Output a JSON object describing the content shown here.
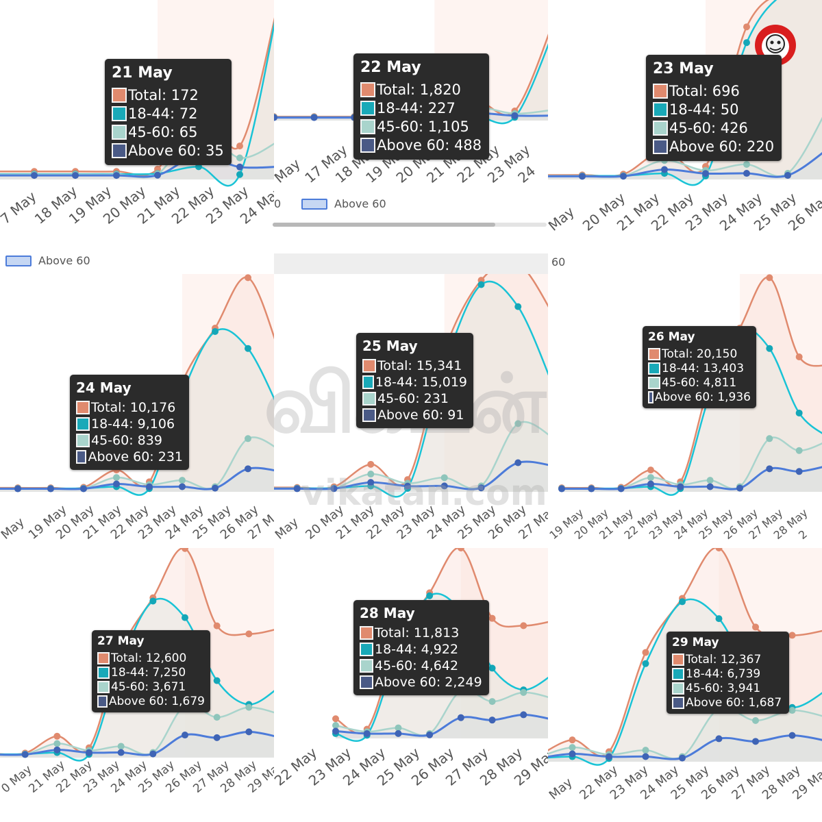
{
  "colors": {
    "total": "#e08a6e",
    "a1844": "#19c3d6",
    "a4560": "#a9d4cc",
    "above60": "#4c7bd9",
    "above60_fill": "#c6d7f3",
    "tip_bg": "#2b2b2b"
  },
  "chart_data": [
    {
      "type": "line",
      "x": [
        "17 May",
        "18 May",
        "19 May",
        "20 May",
        "21 May",
        "22 May",
        "23 May",
        "24 May"
      ],
      "series": [
        {
          "name": "Total",
          "values": [
            null,
            null,
            null,
            null,
            172,
            1820,
            696,
            10176
          ]
        },
        {
          "name": "18-44",
          "values": [
            null,
            null,
            null,
            null,
            72,
            227,
            50,
            9106
          ]
        },
        {
          "name": "45-60",
          "values": [
            null,
            null,
            null,
            null,
            65,
            1105,
            426,
            839
          ]
        },
        {
          "name": "Above 60",
          "values": [
            null,
            null,
            null,
            null,
            35,
            488,
            220,
            231
          ]
        }
      ],
      "tooltip": {
        "title": "21 May",
        "rows": [
          "Total: 172",
          "18-44: 72",
          "45-60: 65",
          "Above 60: 35"
        ]
      }
    },
    {
      "type": "line",
      "x": [
        "17 May",
        "18 May",
        "19 May",
        "20 May",
        "21 May",
        "22 May",
        "23 May",
        "24 May"
      ],
      "series": [
        {
          "name": "Total",
          "values": [
            null,
            null,
            null,
            null,
            172,
            1820,
            696,
            10176
          ]
        },
        {
          "name": "18-44",
          "values": [
            null,
            null,
            null,
            null,
            72,
            227,
            50,
            9106
          ]
        },
        {
          "name": "45-60",
          "values": [
            null,
            null,
            null,
            null,
            65,
            1105,
            426,
            839
          ]
        },
        {
          "name": "Above 60",
          "values": [
            null,
            null,
            null,
            null,
            35,
            488,
            220,
            231
          ]
        }
      ],
      "tooltip": {
        "title": "22 May",
        "rows": [
          "Total: 1,820",
          "18-44: 227",
          "45-60: 1,105",
          "Above 60: 488"
        ]
      }
    },
    {
      "type": "line",
      "x": [
        "19 May",
        "20 May",
        "21 May",
        "22 May",
        "23 May",
        "24 May",
        "25 May",
        "26 May"
      ],
      "series": [
        {
          "name": "Total",
          "values": [
            null,
            null,
            172,
            1820,
            696,
            10176,
            15341,
            20150
          ]
        },
        {
          "name": "18-44",
          "values": [
            null,
            null,
            72,
            227,
            50,
            9106,
            15019,
            13403
          ]
        },
        {
          "name": "45-60",
          "values": [
            null,
            null,
            65,
            1105,
            426,
            839,
            231,
            4811
          ]
        },
        {
          "name": "Above 60",
          "values": [
            null,
            null,
            35,
            488,
            220,
            231,
            91,
            1936
          ]
        }
      ],
      "tooltip": {
        "title": "23 May",
        "rows": [
          "Total: 696",
          "18-44: 50",
          "45-60: 426",
          "Above 60: 220"
        ]
      }
    },
    {
      "type": "line",
      "x": [
        "18 May",
        "19 May",
        "20 May",
        "21 May",
        "22 May",
        "23 May",
        "24 May",
        "25 May",
        "26 May",
        "27 May"
      ],
      "series": [
        {
          "name": "Total",
          "values": [
            null,
            null,
            null,
            172,
            1820,
            696,
            10176,
            15341,
            20150,
            12600
          ]
        },
        {
          "name": "18-44",
          "values": [
            null,
            null,
            null,
            72,
            227,
            50,
            9106,
            15019,
            13403,
            7250
          ]
        },
        {
          "name": "45-60",
          "values": [
            null,
            null,
            null,
            65,
            1105,
            426,
            839,
            231,
            4811,
            3671
          ]
        },
        {
          "name": "Above 60",
          "values": [
            null,
            null,
            null,
            35,
            488,
            220,
            231,
            91,
            1936,
            1679
          ]
        }
      ],
      "tooltip": {
        "title": "24 May",
        "rows": [
          "Total: 10,176",
          "18-44: 9,106",
          "45-60: 839",
          "Above 60: 231"
        ]
      }
    },
    {
      "type": "line",
      "x": [
        "19 May",
        "20 May",
        "21 May",
        "22 May",
        "23 May",
        "24 May",
        "25 May",
        "26 May",
        "27 May"
      ],
      "series": [
        {
          "name": "Total",
          "values": [
            null,
            null,
            172,
            1820,
            696,
            10176,
            15341,
            20150,
            12600
          ]
        },
        {
          "name": "18-44",
          "values": [
            null,
            null,
            72,
            227,
            50,
            9106,
            15019,
            13403,
            7250
          ]
        },
        {
          "name": "45-60",
          "values": [
            null,
            null,
            65,
            1105,
            426,
            839,
            231,
            4811,
            3671
          ]
        },
        {
          "name": "Above 60",
          "values": [
            null,
            null,
            35,
            488,
            220,
            231,
            91,
            1936,
            1679
          ]
        }
      ],
      "tooltip": {
        "title": "25 May",
        "rows": [
          "Total: 15,341",
          "18-44: 15,019",
          "45-60: 231",
          "Above 60: 91"
        ]
      }
    },
    {
      "type": "line",
      "x": [
        "19 May",
        "20 May",
        "21 May",
        "22 May",
        "23 May",
        "24 May",
        "25 May",
        "26 May",
        "27 May",
        "28 May"
      ],
      "series": [
        {
          "name": "Total",
          "values": [
            null,
            null,
            172,
            1820,
            696,
            10176,
            15341,
            20150,
            12600,
            11813
          ]
        },
        {
          "name": "18-44",
          "values": [
            null,
            null,
            72,
            227,
            50,
            9106,
            15019,
            13403,
            7250,
            4922
          ]
        },
        {
          "name": "45-60",
          "values": [
            null,
            null,
            65,
            1105,
            426,
            839,
            231,
            4811,
            3671,
            4642
          ]
        },
        {
          "name": "Above 60",
          "values": [
            null,
            null,
            35,
            488,
            220,
            231,
            91,
            1936,
            1679,
            2249
          ]
        }
      ],
      "tooltip": {
        "title": "26 May",
        "rows": [
          "Total: 20,150",
          "18-44: 13,403",
          "45-60: 4,811",
          "Above 60: 1,936"
        ]
      }
    },
    {
      "type": "line",
      "x": [
        "20 May",
        "21 May",
        "22 May",
        "23 May",
        "24 May",
        "25 May",
        "26 May",
        "27 May",
        "28 May",
        "29 May"
      ],
      "series": [
        {
          "name": "Total",
          "values": [
            null,
            172,
            1820,
            696,
            10176,
            15341,
            20150,
            12600,
            11813,
            12367
          ]
        },
        {
          "name": "18-44",
          "values": [
            null,
            72,
            227,
            50,
            9106,
            15019,
            13403,
            7250,
            4922,
            6739
          ]
        },
        {
          "name": "45-60",
          "values": [
            null,
            65,
            1105,
            426,
            839,
            231,
            4811,
            3671,
            4642,
            3941
          ]
        },
        {
          "name": "Above 60",
          "values": [
            null,
            35,
            488,
            220,
            231,
            91,
            1936,
            1679,
            2249,
            1687
          ]
        }
      ],
      "tooltip": {
        "title": "27 May",
        "rows": [
          "Total: 12,600",
          "18-44: 7,250",
          "45-60: 3,671",
          "Above 60: 1,679"
        ]
      }
    },
    {
      "type": "line",
      "x": [
        "22 May",
        "23 May",
        "24 May",
        "25 May",
        "26 May",
        "27 May",
        "28 May",
        "29 May"
      ],
      "series": [
        {
          "name": "Total",
          "values": [
            1820,
            696,
            10176,
            15341,
            20150,
            12600,
            11813,
            12367
          ]
        },
        {
          "name": "18-44",
          "values": [
            227,
            50,
            9106,
            15019,
            13403,
            7250,
            4922,
            6739
          ]
        },
        {
          "name": "45-60",
          "values": [
            1105,
            426,
            839,
            231,
            4811,
            3671,
            4642,
            3941
          ]
        },
        {
          "name": "Above 60",
          "values": [
            488,
            220,
            231,
            91,
            1936,
            1679,
            2249,
            1687
          ]
        }
      ],
      "tooltip": {
        "title": "28 May",
        "rows": [
          "Total: 11,813",
          "18-44: 4,922",
          "45-60: 4,642",
          "Above 60: 2,249"
        ]
      }
    },
    {
      "type": "line",
      "x": [
        "May",
        "22 May",
        "23 May",
        "24 May",
        "25 May",
        "26 May",
        "27 May",
        "28 May",
        "29 May"
      ],
      "series": [
        {
          "name": "Total",
          "values": [
            null,
            1820,
            696,
            10176,
            15341,
            20150,
            12600,
            11813,
            12367
          ]
        },
        {
          "name": "18-44",
          "values": [
            null,
            227,
            50,
            9106,
            15019,
            13403,
            7250,
            4922,
            6739
          ]
        },
        {
          "name": "45-60",
          "values": [
            null,
            1105,
            426,
            839,
            231,
            4811,
            3671,
            4642,
            3941
          ]
        },
        {
          "name": "Above 60",
          "values": [
            null,
            488,
            220,
            231,
            91,
            1936,
            1679,
            2249,
            1687
          ]
        }
      ],
      "tooltip": {
        "title": "29 May",
        "rows": [
          "Total: 12,367",
          "18-44: 6,739",
          "45-60: 3,941",
          "Above 60: 1,687"
        ]
      }
    }
  ],
  "panel_axes": [
    [
      "7 May",
      "18 May",
      "19 May",
      "20 May",
      "21 May",
      "22 May",
      "23 May",
      "24 May"
    ],
    [
      "May",
      "17 May",
      "18 May",
      "19 May",
      "20 May",
      "21 May",
      "22 May",
      "23 May",
      "24"
    ],
    [
      "May",
      "20 May",
      "21 May",
      "22 May",
      "23 May",
      "24 May",
      "25 May",
      "26 Ma"
    ],
    [
      "May",
      "19 May",
      "20 May",
      "21 May",
      "22 May",
      "23 May",
      "24 May",
      "25 May",
      "26 May",
      "27 M"
    ],
    [
      "May",
      "20 May",
      "21 May",
      "22 May",
      "23 May",
      "24 May",
      "25 May",
      "26 May",
      "27 May"
    ],
    [
      "19 May",
      "20 May",
      "21 May",
      "22 May",
      "23 May",
      "24 May",
      "25 May",
      "26 May",
      "27 May",
      "28 May",
      "2"
    ],
    [
      "0 May",
      "21 May",
      "22 May",
      "23 May",
      "24 May",
      "25 May",
      "26 May",
      "27 May",
      "28 May",
      "29 May"
    ],
    [
      "22 May",
      "23 May",
      "24 May",
      "25 May",
      "26 May",
      "27 May",
      "28 May",
      "29 May"
    ],
    [
      "May",
      "22 May",
      "23 May",
      "24 May",
      "25 May",
      "26 May",
      "27 May",
      "28 May",
      "29 May"
    ]
  ],
  "legend": {
    "above60": "Above 60",
    "fragment_60": "60",
    "fragment_0": "0"
  },
  "watermark": {
    "tamil": "விகடன்",
    "site": "vikatan.com"
  }
}
